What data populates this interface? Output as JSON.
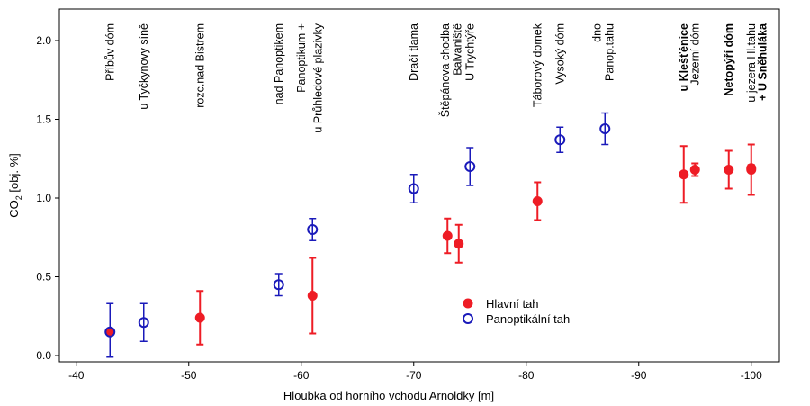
{
  "chart_data": {
    "type": "scatter",
    "xlabel": "Hloubka od horního vchodu Arnoldky [m]",
    "ylabel": {
      "base": "CO",
      "sub": "2",
      "rest": " [obj. %]"
    },
    "xlim": [
      -38.5,
      -102.5
    ],
    "ylim": [
      -0.04,
      2.2
    ],
    "x_ticks": [
      -40,
      -50,
      -60,
      -70,
      -80,
      -90,
      -100
    ],
    "y_ticks": [
      0.0,
      0.5,
      1.0,
      1.5,
      2.0
    ],
    "legend_position": "bottom-center",
    "series": [
      {
        "name": "Hlavní tah",
        "marker": "filled-circle",
        "color": "#ee1c25",
        "points": [
          {
            "x": -43,
            "y": 0.15,
            "low": 0.15,
            "high": 0.15
          },
          {
            "x": -51,
            "y": 0.24,
            "low": 0.07,
            "high": 0.41
          },
          {
            "x": -61,
            "y": 0.38,
            "low": 0.14,
            "high": 0.62
          },
          {
            "x": -73,
            "y": 0.76,
            "low": 0.65,
            "high": 0.87
          },
          {
            "x": -74,
            "y": 0.71,
            "low": 0.59,
            "high": 0.83
          },
          {
            "x": -81,
            "y": 0.98,
            "low": 0.86,
            "high": 1.1
          },
          {
            "x": -94,
            "y": 1.15,
            "low": 0.97,
            "high": 1.33
          },
          {
            "x": -95,
            "y": 1.18,
            "low": 1.14,
            "high": 1.22
          },
          {
            "x": -98,
            "y": 1.18,
            "low": 1.06,
            "high": 1.3
          },
          {
            "x": -100,
            "y": 1.18,
            "low": 1.02,
            "high": 1.34
          },
          {
            "x": -100,
            "y": 1.19,
            "low": 1.17,
            "high": 1.21
          }
        ]
      },
      {
        "name": "Panoptikální tah",
        "marker": "open-circle",
        "color": "#1a1aba",
        "points": [
          {
            "x": -43,
            "y": 0.15,
            "low": -0.01,
            "high": 0.33
          },
          {
            "x": -46,
            "y": 0.21,
            "low": 0.09,
            "high": 0.33
          },
          {
            "x": -58,
            "y": 0.45,
            "low": 0.38,
            "high": 0.52
          },
          {
            "x": -61,
            "y": 0.8,
            "low": 0.73,
            "high": 0.87
          },
          {
            "x": -70,
            "y": 1.06,
            "low": 0.97,
            "high": 1.15
          },
          {
            "x": -75,
            "y": 1.2,
            "low": 1.08,
            "high": 1.32
          },
          {
            "x": -83,
            "y": 1.37,
            "low": 1.29,
            "high": 1.45
          },
          {
            "x": -87,
            "y": 1.44,
            "low": 1.34,
            "high": 1.54
          }
        ]
      }
    ],
    "annotations": [
      {
        "text": "Příbův dóm",
        "x": -43,
        "bold": false
      },
      {
        "text": "u Tyčkynovy síně",
        "x": -46,
        "bold": false
      },
      {
        "text": "rozc.nad Bistrem",
        "x": -51,
        "bold": false
      },
      {
        "text": "nad Panoptikem",
        "x": -58,
        "bold": false
      },
      {
        "text": "Panoptikum +",
        "x": -60,
        "bold": false
      },
      {
        "text": "u Průhledové plazivky",
        "x": -61.5,
        "bold": false
      },
      {
        "text": "Dračí tlama",
        "x": -70,
        "bold": false
      },
      {
        "text": "Štěpánova chodba",
        "x": -72.8,
        "bold": false
      },
      {
        "text": "Balvaniště",
        "x": -73.9,
        "bold": false
      },
      {
        "text": "U Trychtýře",
        "x": -75,
        "bold": false
      },
      {
        "text": "Táborový domek",
        "x": -81,
        "bold": false
      },
      {
        "text": "Vysoký dóm",
        "x": -83,
        "bold": false
      },
      {
        "text": "dno",
        "x": -86.3,
        "bold": false
      },
      {
        "text": "Panop.tahu",
        "x": -87.4,
        "bold": false
      },
      {
        "text": "u Klešťěnice",
        "x": -94,
        "bold": true
      },
      {
        "text": "Jezerní dóm",
        "x": -95,
        "bold": false
      },
      {
        "text": "Netopýří dóm",
        "x": -98,
        "bold": true
      },
      {
        "text": "u jezera Hl.tahu",
        "x": -100,
        "bold": false
      },
      {
        "text": "+ U Sněhuláka",
        "x": -101,
        "bold": true
      }
    ]
  }
}
